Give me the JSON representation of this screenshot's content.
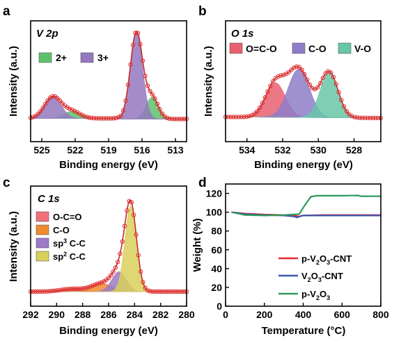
{
  "chart_data": [
    {
      "panel": "a",
      "type": "area",
      "title": "V 2p",
      "xlabel": "Binding energy (eV)",
      "ylabel": "Intensity (a.u.)",
      "xlim": [
        526,
        512
      ],
      "x_reversed": true,
      "xticks": [
        "525",
        "522",
        "519",
        "516",
        "513"
      ],
      "xtick_values": [
        525,
        522,
        519,
        516,
        513
      ],
      "legend": [
        "2+",
        "3+"
      ],
      "legend_placement": "top-left",
      "series": [
        {
          "name": "2+",
          "color": "#5ec26a",
          "peaks": [
            {
              "center": 515.1,
              "height": 0.25,
              "width": 0.55
            },
            {
              "center": 522.3,
              "height": 0.08,
              "width": 0.75
            }
          ]
        },
        {
          "name": "3+",
          "color": "#9478c0",
          "peaks": [
            {
              "center": 516.5,
              "height": 1.0,
              "width": 0.55
            },
            {
              "center": 524.0,
              "height": 0.25,
              "width": 0.75
            }
          ]
        }
      ]
    },
    {
      "panel": "b",
      "type": "area",
      "title": "O 1s",
      "xlabel": "Binding energy (eV)",
      "ylabel": "Intensity (a.u.)",
      "xlim": [
        535.2,
        526.5
      ],
      "x_reversed": true,
      "xticks": [
        "534",
        "532",
        "530",
        "528"
      ],
      "xtick_values": [
        534,
        532,
        530,
        528
      ],
      "legend": [
        "O=C-O",
        "C-O",
        "V-O"
      ],
      "legend_placement": "top",
      "series": [
        {
          "name": "O=C-O",
          "color": "#e8606e",
          "peaks": [
            {
              "center": 532.4,
              "height": 0.62,
              "width": 0.55
            }
          ]
        },
        {
          "name": "C-O",
          "color": "#8e7cc8",
          "peaks": [
            {
              "center": 531.1,
              "height": 0.87,
              "width": 0.6
            }
          ]
        },
        {
          "name": "V-O",
          "color": "#69c7a8",
          "peaks": [
            {
              "center": 529.4,
              "height": 0.82,
              "width": 0.5
            }
          ]
        }
      ]
    },
    {
      "panel": "c",
      "type": "area",
      "title": "C 1s",
      "xlabel": "Binding energy (eV)",
      "ylabel": "Intensity (a.u.)",
      "xlim": [
        292,
        280
      ],
      "x_reversed": true,
      "xticks": [
        "292",
        "290",
        "288",
        "286",
        "284",
        "282",
        "280"
      ],
      "xtick_values": [
        292,
        290,
        288,
        286,
        284,
        282,
        280
      ],
      "legend": [
        "O-C=O",
        "C-O",
        "sp³ C-C",
        "sp² C-C"
      ],
      "legend_placement": "left",
      "series": [
        {
          "name": "O-C=O",
          "color": "#f0707a",
          "peaks": [
            {
              "center": 288.8,
              "height": 0.03,
              "width": 0.9
            }
          ]
        },
        {
          "name": "C-O",
          "color": "#f08a30",
          "peaks": [
            {
              "center": 286.5,
              "height": 0.09,
              "width": 0.8
            }
          ]
        },
        {
          "name": "sp³ C-C",
          "color": "#9b7ac8",
          "peaks": [
            {
              "center": 285.2,
              "height": 0.22,
              "width": 0.55
            }
          ]
        },
        {
          "name": "sp² C-C",
          "color": "#d9d05a",
          "peaks": [
            {
              "center": 284.3,
              "height": 0.95,
              "width": 0.45
            }
          ]
        }
      ]
    },
    {
      "panel": "d",
      "type": "line",
      "title": "",
      "xlabel": "Temperature (°C)",
      "ylabel": "Weight (%)",
      "xlim": [
        0,
        800
      ],
      "ylim": [
        0,
        130
      ],
      "xticks": [
        "0",
        "200",
        "400",
        "600",
        "800"
      ],
      "xtick_values": [
        0,
        200,
        400,
        600,
        800
      ],
      "yticks": [
        "0",
        "20",
        "40",
        "60",
        "80",
        "100",
        "120"
      ],
      "ytick_values": [
        0,
        20,
        40,
        60,
        80,
        100,
        120
      ],
      "legend_placement": "lower-right",
      "series": [
        {
          "name": "p-V₂O₃-CNT",
          "color": "#e8262a",
          "x": [
            30,
            100,
            200,
            300,
            350,
            380,
            400,
            500,
            600,
            700,
            800
          ],
          "y": [
            100,
            98.5,
            97.5,
            97.0,
            96.5,
            95.5,
            96.5,
            97,
            97,
            97,
            97
          ]
        },
        {
          "name": "V₂O₃-CNT",
          "color": "#3a56b0",
          "x": [
            30,
            100,
            200,
            300,
            350,
            370,
            390,
            400,
            500,
            600,
            700,
            800
          ],
          "y": [
            100,
            98.0,
            97.0,
            96.5,
            95.5,
            94.5,
            96.0,
            96.5,
            96.5,
            96.5,
            96.5,
            96.5
          ]
        },
        {
          "name": "p-V₂O₃",
          "color": "#2e9a5a",
          "x": [
            30,
            100,
            200,
            300,
            380,
            410,
            440,
            470,
            500,
            600,
            680,
            700,
            800
          ],
          "y": [
            100,
            97.0,
            96.5,
            97.0,
            98.0,
            108,
            116.5,
            117.5,
            117.5,
            117.5,
            117.8,
            117.0,
            117.0
          ]
        }
      ]
    }
  ],
  "panels": {
    "a": {
      "label": "a",
      "title": "V 2p"
    },
    "b": {
      "label": "b",
      "title": "O 1s"
    },
    "c": {
      "label": "c",
      "title": "C 1s"
    },
    "d": {
      "label": "d"
    }
  },
  "legend_labels": {
    "a": [
      "2+",
      "3+"
    ],
    "b": [
      "O=C-O",
      "C-O",
      "V-O"
    ],
    "c": {
      "l1": "O-C=O",
      "l2": "C-O",
      "l3_pre": "sp",
      "l3_sup": "3",
      "l3_post": " C-C",
      "l4_pre": "sp",
      "l4_sup": "2",
      "l4_post": " C-C"
    },
    "d": {
      "s1_pre": "p-V",
      "s1_sub1": "2",
      "s1_mid": "O",
      "s1_sub2": "3",
      "s1_post": "-CNT",
      "s2_pre": "V",
      "s2_sub1": "2",
      "s2_mid": "O",
      "s2_sub2": "3",
      "s2_post": "-CNT",
      "s3_pre": "p-V",
      "s3_sub1": "2",
      "s3_mid": "O",
      "s3_sub2": "3",
      "s3_post": ""
    }
  },
  "colors": {
    "fit_envelope": "#c8282e",
    "data_markers": "#e0302e"
  }
}
